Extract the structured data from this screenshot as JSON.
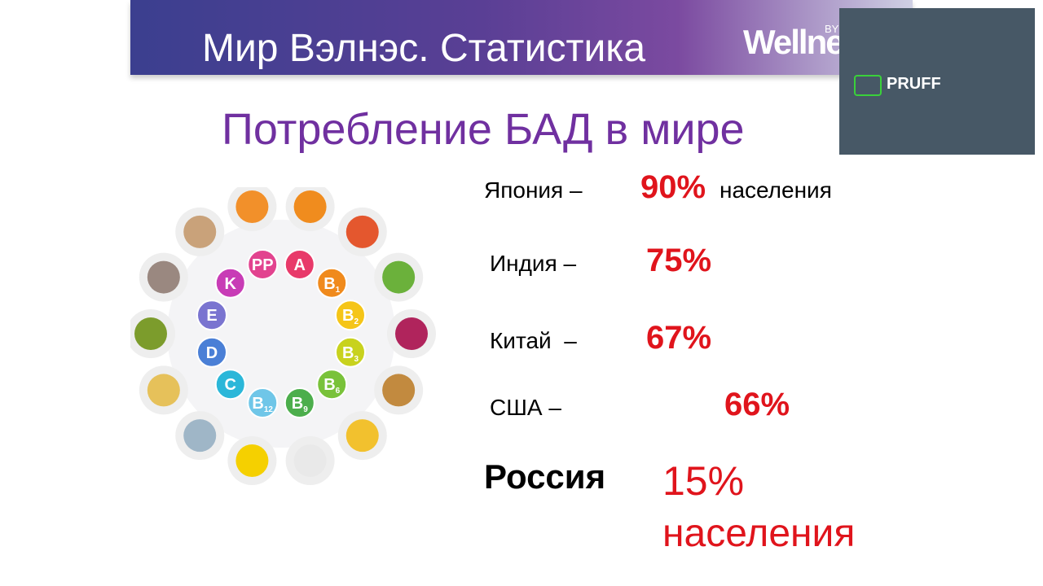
{
  "header": {
    "title": "Мир Вэлнэс. Статистика",
    "logo": "Wellne",
    "logo_by": "BY OR"
  },
  "watermark": {
    "text": "PRUFF"
  },
  "subtitle": "Потребление БАД в мире",
  "vitamins": [
    {
      "letter": "PP",
      "sub": null
    },
    {
      "letter": "A",
      "sub": null
    },
    {
      "letter": "B",
      "sub": "1"
    },
    {
      "letter": "B",
      "sub": "2"
    },
    {
      "letter": "B",
      "sub": "3"
    },
    {
      "letter": "B",
      "sub": "6"
    },
    {
      "letter": "B",
      "sub": "9"
    },
    {
      "letter": "B",
      "sub": "12"
    },
    {
      "letter": "C",
      "sub": null
    },
    {
      "letter": "D",
      "sub": null
    },
    {
      "letter": "E",
      "sub": null
    },
    {
      "letter": "K",
      "sub": null
    }
  ],
  "rows": [
    {
      "country": "Япония –",
      "value": "90%",
      "note": "населения"
    },
    {
      "country": "Индия –",
      "value": "75%",
      "note": null
    },
    {
      "country": "Китай  –",
      "value": "67%",
      "note": null
    },
    {
      "country": "США –",
      "value": "66%",
      "note": null
    },
    {
      "country": "Россия",
      "value": "15%",
      "note": "населения"
    }
  ]
}
